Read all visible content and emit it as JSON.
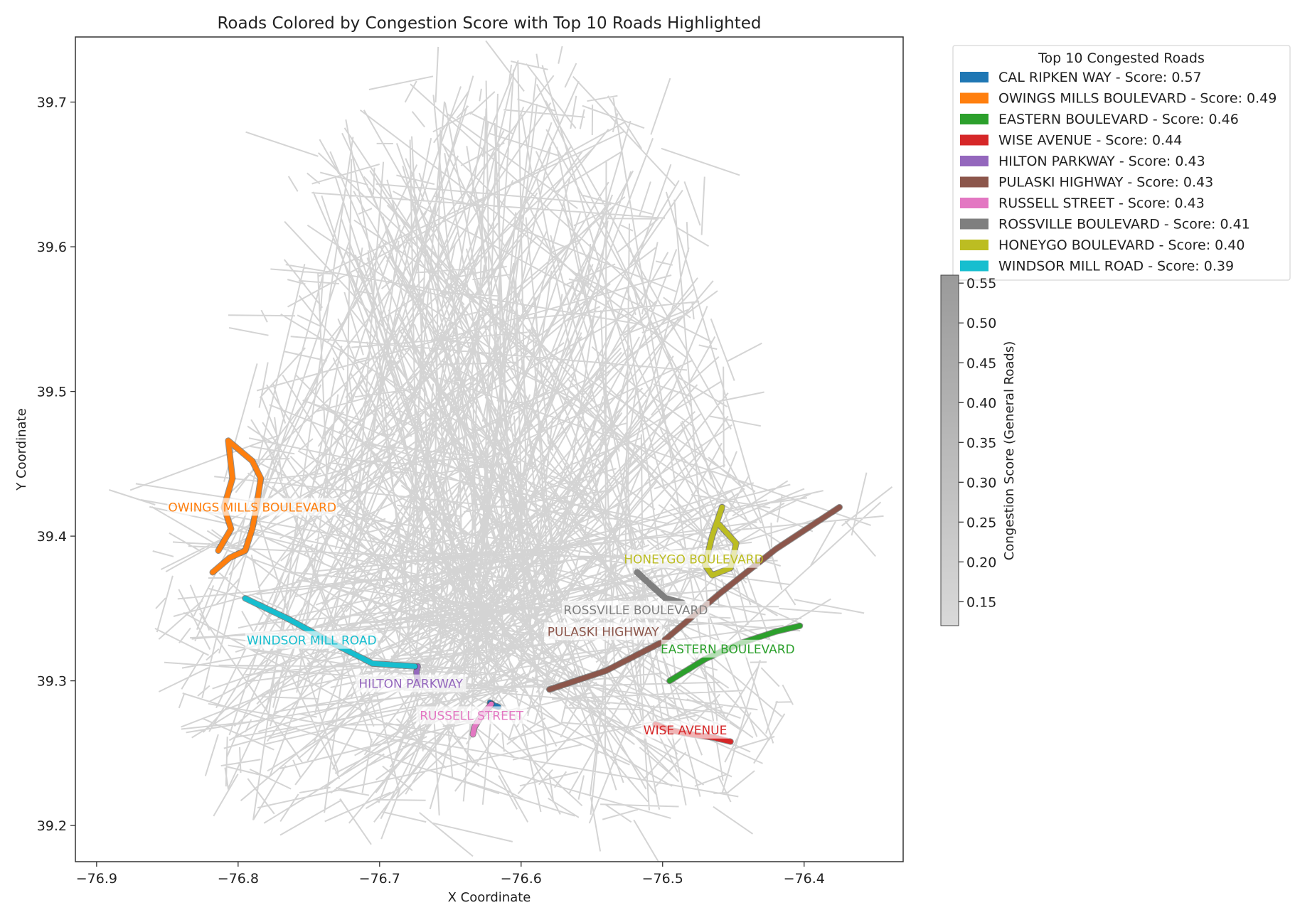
{
  "chart_data": {
    "type": "line",
    "title": "Roads Colored by Congestion Score with Top 10 Roads Highlighted",
    "xlabel": "X Coordinate",
    "ylabel": "Y Coordinate",
    "xlim": [
      -76.915,
      -76.33
    ],
    "ylim": [
      39.175,
      39.745
    ],
    "xticks": [
      -76.9,
      -76.8,
      -76.7,
      -76.6,
      -76.5,
      -76.4
    ],
    "yticks": [
      39.2,
      39.3,
      39.4,
      39.5,
      39.6,
      39.7
    ],
    "grid": false,
    "legend": {
      "title": "Top 10 Congested Roads",
      "placement": "outside-top-right"
    },
    "colorbar": {
      "label": "Congestion Score (General Roads)",
      "range": [
        0.12,
        0.56
      ],
      "ticks": [
        0.15,
        0.2,
        0.25,
        0.3,
        0.35,
        0.4,
        0.45,
        0.5,
        0.55
      ]
    },
    "background_color": "#cccccc",
    "highlighted_roads": [
      {
        "name": "CAL RIPKEN WAY",
        "score": "0.57",
        "color": "#1f77b4",
        "legend_label": "CAL RIPKEN WAY - Score: 0.57",
        "label_pos": null,
        "points": [
          [
            -76.622,
            39.285
          ],
          [
            -76.619,
            39.283
          ],
          [
            -76.616,
            39.282
          ]
        ]
      },
      {
        "name": "OWINGS MILLS BOULEVARD",
        "score": "0.49",
        "color": "#ff7f0e",
        "legend_label": "OWINGS MILLS BOULEVARD - Score: 0.49",
        "label_pos": [
          -76.79,
          39.42
        ],
        "points": [
          [
            -76.818,
            39.375
          ],
          [
            -76.806,
            39.385
          ],
          [
            -76.795,
            39.39
          ],
          [
            -76.79,
            39.405
          ],
          [
            -76.787,
            39.42
          ],
          [
            -76.784,
            39.44
          ],
          [
            -76.79,
            39.452
          ],
          [
            -76.807,
            39.466
          ],
          [
            -76.804,
            39.44
          ],
          [
            -76.81,
            39.42
          ],
          [
            -76.805,
            39.405
          ],
          [
            -76.814,
            39.39
          ]
        ]
      },
      {
        "name": "EASTERN BOULEVARD",
        "score": "0.46",
        "color": "#2ca02c",
        "legend_label": "EASTERN BOULEVARD - Score: 0.46",
        "label_pos": [
          -76.454,
          39.322
        ],
        "points": [
          [
            -76.495,
            39.3
          ],
          [
            -76.47,
            39.315
          ],
          [
            -76.445,
            39.326
          ],
          [
            -76.42,
            39.334
          ],
          [
            -76.403,
            39.338
          ]
        ]
      },
      {
        "name": "WISE AVENUE",
        "score": "0.44",
        "color": "#d62728",
        "legend_label": "WISE AVENUE - Score: 0.44",
        "label_pos": [
          -76.484,
          39.266
        ],
        "points": [
          [
            -76.505,
            39.27
          ],
          [
            -76.495,
            39.266
          ],
          [
            -76.48,
            39.263
          ],
          [
            -76.465,
            39.261
          ],
          [
            -76.452,
            39.258
          ]
        ]
      },
      {
        "name": "HILTON PARKWAY",
        "score": "0.43",
        "color": "#9467bd",
        "legend_label": "HILTON PARKWAY - Score: 0.43",
        "label_pos": [
          -76.678,
          39.298
        ],
        "points": [
          [
            -76.673,
            39.31
          ],
          [
            -76.674,
            39.306
          ],
          [
            -76.673,
            39.3
          ]
        ]
      },
      {
        "name": "PULASKI HIGHWAY",
        "score": "0.43",
        "color": "#8c564b",
        "legend_label": "PULASKI HIGHWAY - Score: 0.43",
        "label_pos": [
          -76.542,
          39.334
        ],
        "points": [
          [
            -76.58,
            39.294
          ],
          [
            -76.54,
            39.307
          ],
          [
            -76.5,
            39.327
          ],
          [
            -76.46,
            39.36
          ],
          [
            -76.42,
            39.391
          ],
          [
            -76.375,
            39.42
          ]
        ]
      },
      {
        "name": "RUSSELL STREET",
        "score": "0.43",
        "color": "#e377c2",
        "legend_label": "RUSSELL STREET - Score: 0.43",
        "label_pos": [
          -76.635,
          39.276
        ],
        "points": [
          [
            -76.621,
            39.284
          ],
          [
            -76.628,
            39.276
          ],
          [
            -76.633,
            39.268
          ],
          [
            -76.634,
            39.263
          ]
        ]
      },
      {
        "name": "ROSSVILLE BOULEVARD",
        "score": "0.41",
        "color": "#7f7f7f",
        "legend_label": "ROSSVILLE BOULEVARD - Score: 0.41",
        "label_pos": [
          -76.519,
          39.349
        ],
        "points": [
          [
            -76.518,
            39.375
          ],
          [
            -76.508,
            39.366
          ],
          [
            -76.498,
            39.357
          ],
          [
            -76.486,
            39.354
          ]
        ]
      },
      {
        "name": "HONEYGO BOULEVARD",
        "score": "0.40",
        "color": "#bcbd22",
        "legend_label": "HONEYGO BOULEVARD - Score: 0.40",
        "label_pos": [
          -76.478,
          39.384
        ],
        "points": [
          [
            -76.458,
            39.42
          ],
          [
            -76.465,
            39.4
          ],
          [
            -76.47,
            39.38
          ],
          [
            -76.465,
            39.373
          ],
          [
            -76.452,
            39.378
          ],
          [
            -76.448,
            39.395
          ],
          [
            -76.46,
            39.408
          ]
        ]
      },
      {
        "name": "WINDSOR MILL ROAD",
        "score": "0.39",
        "color": "#17becf",
        "legend_label": "WINDSOR MILL ROAD - Score: 0.39",
        "label_pos": [
          -76.748,
          39.328
        ],
        "points": [
          [
            -76.795,
            39.357
          ],
          [
            -76.765,
            39.343
          ],
          [
            -76.735,
            39.327
          ],
          [
            -76.705,
            39.312
          ],
          [
            -76.675,
            39.31
          ]
        ]
      }
    ]
  }
}
